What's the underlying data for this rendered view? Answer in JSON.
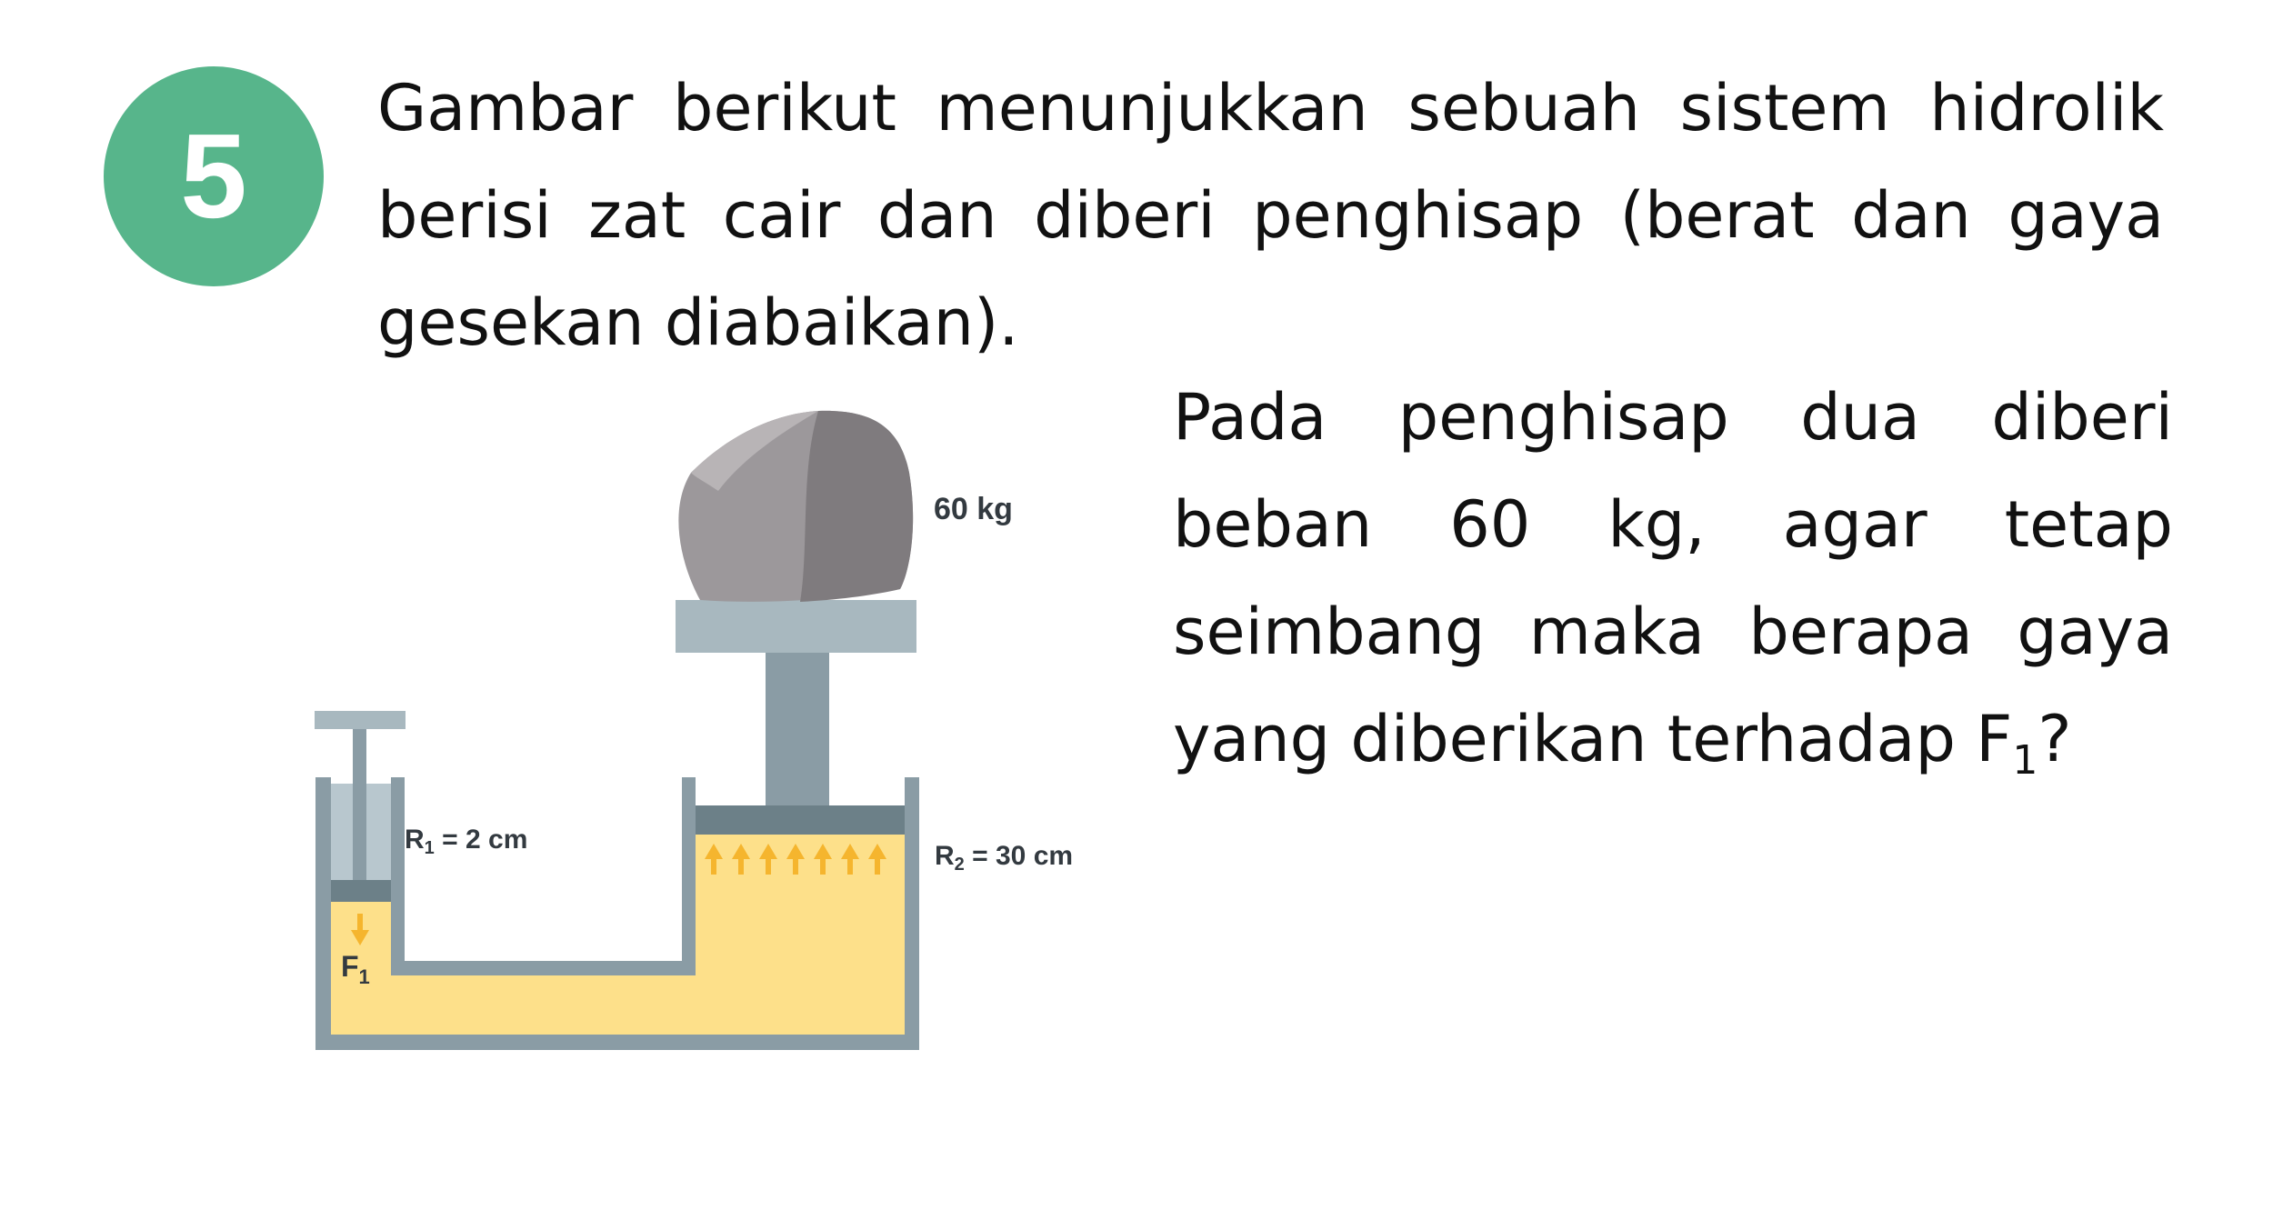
{
  "problem": {
    "number": "5",
    "intro": "Gambar berikut menunjukkan sebuah sistem hidrolik berisi zat cair dan diberi penghisap (berat dan gaya gesekan diabaikan).",
    "question_main": "Pada penghisap dua diberi beban 60 kg, agar tetap seimbang maka berapa gaya yang diberikan terhadap F",
    "question_sub": "1",
    "question_end": "?"
  },
  "diagram": {
    "mass_label": "60 kg",
    "r1_text": "R",
    "r1_sub": "1",
    "r1_value": " = 2 cm",
    "r2_text": "R",
    "r2_sub": "2",
    "r2_value": " = 30 cm",
    "f1_text": "F",
    "f1_sub": "1",
    "colors": {
      "fluid": "#fde08a",
      "wall": "#8a9ca5",
      "piston": "#6c8088",
      "rock": "#8d898c",
      "arrow": "#f5b52e",
      "badge": "#57b58b"
    }
  }
}
